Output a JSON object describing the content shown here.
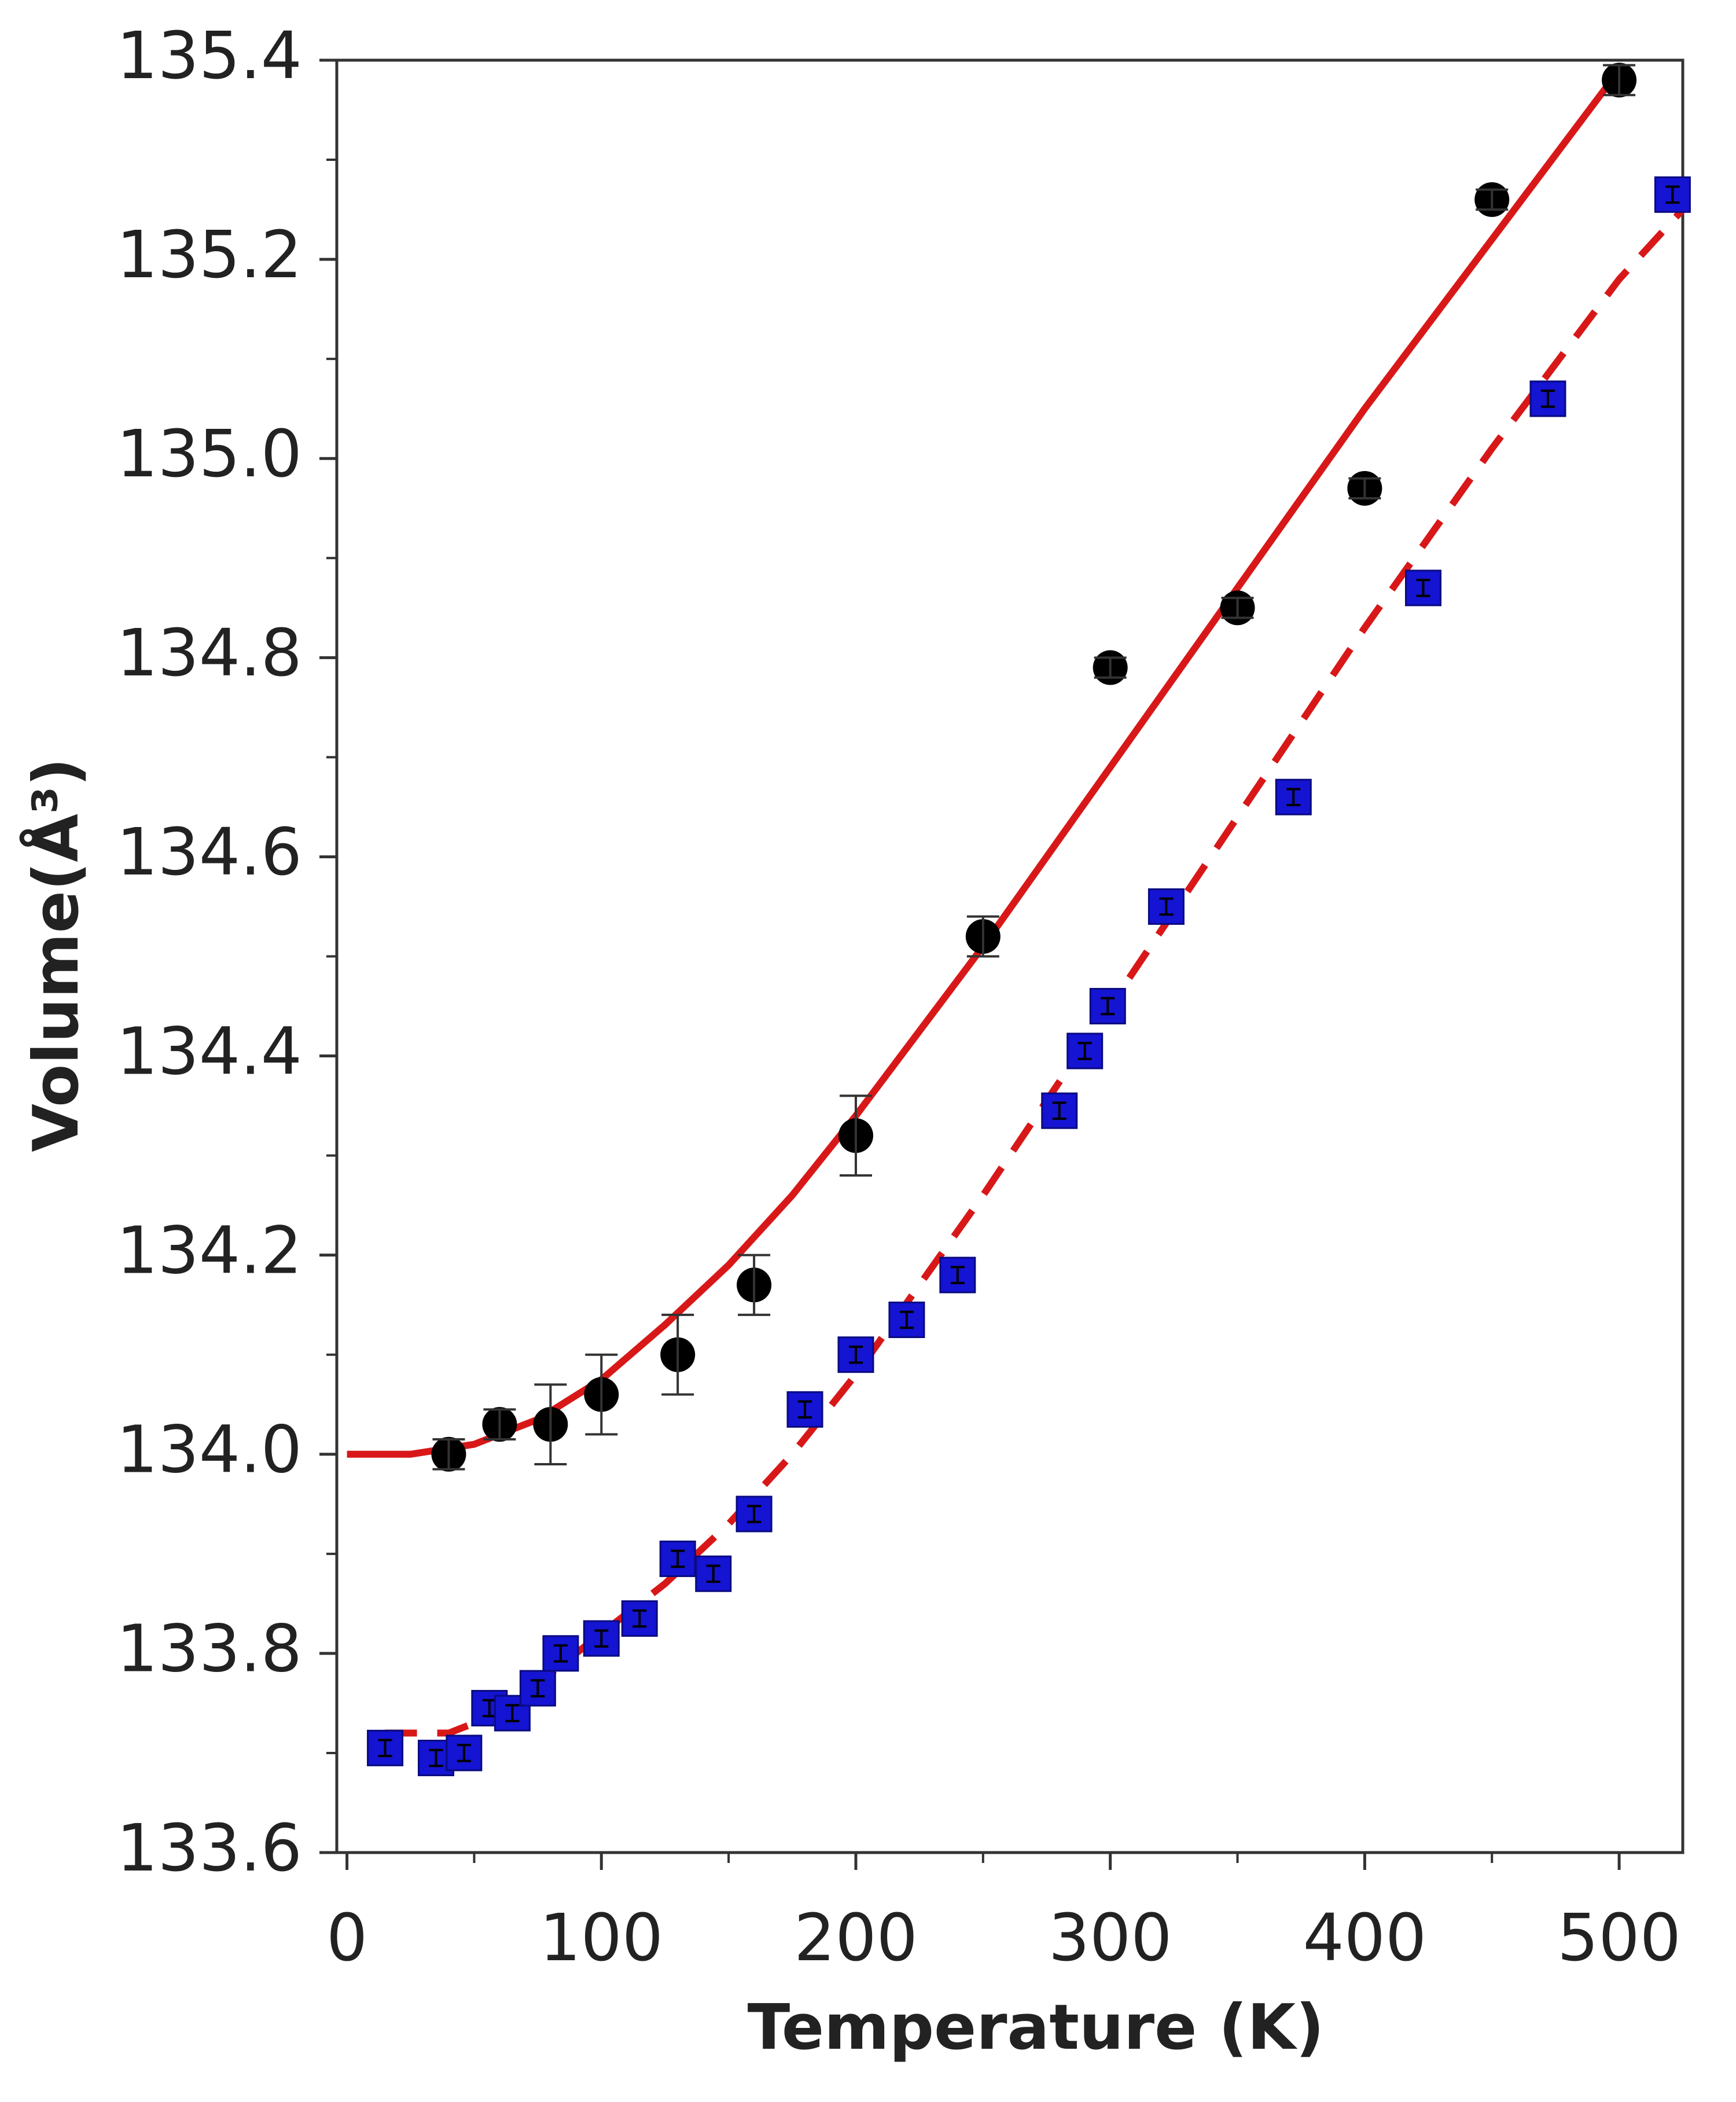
{
  "chart_data": {
    "type": "scatter",
    "xlabel": "Temperature (K)",
    "ylabel": "Volume(Å³)",
    "xlim": [
      -4,
      525
    ],
    "ylim": [
      133.6,
      135.4
    ],
    "xticks": [
      0,
      100,
      200,
      300,
      400,
      500
    ],
    "yticks": [
      133.6,
      133.8,
      {
        "value": 134,
        "label": "134.0"
      },
      134.2,
      134.4,
      134.6,
      134.8,
      {
        "value": 135,
        "label": "135.0"
      },
      135.2,
      135.4
    ],
    "series": [
      {
        "marker": "circle",
        "color": "#000000",
        "x": [
          40,
          60,
          80,
          100,
          130,
          160,
          200,
          250,
          300,
          350,
          400,
          450,
          500
        ],
        "y": [
          134.0,
          134.03,
          134.03,
          134.06,
          134.1,
          134.17,
          134.32,
          134.52,
          134.79,
          134.85,
          134.97,
          135.26,
          135.38
        ],
        "err": [
          0.015,
          0.015,
          0.04,
          0.04,
          0.04,
          0.03,
          0.04,
          0.02,
          0.01,
          0.01,
          0.01,
          0.01,
          0.015
        ]
      },
      {
        "marker": "square",
        "color": "#1414d2",
        "x": [
          15,
          35,
          46,
          56,
          65,
          75,
          84,
          100,
          115,
          130,
          144,
          160,
          180,
          200,
          220,
          240,
          280,
          290,
          299,
          322,
          372,
          423,
          472,
          521
        ],
        "y": [
          133.705,
          133.695,
          133.7,
          133.745,
          133.74,
          133.765,
          133.8,
          133.815,
          133.835,
          133.895,
          133.88,
          133.94,
          134.045,
          134.1,
          134.135,
          134.18,
          134.345,
          134.405,
          134.45,
          134.55,
          134.66,
          134.87,
          135.06,
          135.265
        ],
        "err": [
          0.008,
          0.008,
          0.008,
          0.008,
          0.008,
          0.008,
          0.008,
          0.008,
          0.008,
          0.008,
          0.008,
          0.008,
          0.008,
          0.008,
          0.008,
          0.008,
          0.008,
          0.008,
          0.008,
          0.008,
          0.008,
          0.008,
          0.008,
          0.008
        ]
      }
    ],
    "fits": [
      {
        "style": "solid",
        "color": "#d81818",
        "x": [
          0,
          25,
          50,
          75,
          100,
          125,
          150,
          175,
          200,
          250,
          300,
          350,
          400,
          450,
          500
        ],
        "y": [
          134.0,
          134.0,
          134.01,
          134.035,
          134.075,
          134.13,
          134.19,
          134.26,
          134.34,
          134.51,
          134.69,
          134.87,
          135.05,
          135.22,
          135.39
        ]
      },
      {
        "style": "dashed",
        "color": "#d81818",
        "x": [
          15,
          40,
          60,
          80,
          100,
          125,
          150,
          175,
          200,
          250,
          300,
          350,
          400,
          450,
          500,
          525
        ],
        "y": [
          133.72,
          133.72,
          133.74,
          133.78,
          133.82,
          133.87,
          133.93,
          134.0,
          134.08,
          134.26,
          134.45,
          134.64,
          134.83,
          135.01,
          135.18,
          135.25
        ]
      }
    ]
  }
}
